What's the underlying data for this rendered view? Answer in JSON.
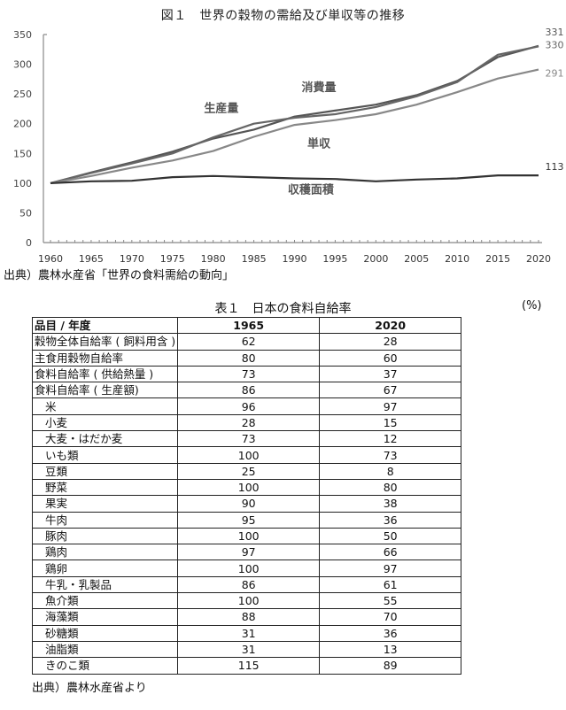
{
  "figure": {
    "title": "図１　世界の穀物の需給及び単収等の推移",
    "source": "出典）農林水産省「世界の食料需給の動向」"
  },
  "chart_data": {
    "type": "line",
    "title": "図１　世界の穀物の需給及び単収等の推移",
    "xlabel": "",
    "ylabel": "",
    "ylim": [
      0,
      350
    ],
    "xlim": [
      1960,
      2020
    ],
    "yticks": [
      0,
      50,
      100,
      150,
      200,
      250,
      300,
      350
    ],
    "xticks": [
      1960,
      1965,
      1970,
      1975,
      1980,
      1985,
      1990,
      1995,
      2000,
      2005,
      2010,
      2015,
      2020
    ],
    "grid": false,
    "legend": "inline labels",
    "x": [
      1960,
      1965,
      1970,
      1975,
      1980,
      1985,
      1990,
      1995,
      2000,
      2005,
      2010,
      2015,
      2020
    ],
    "series": [
      {
        "name": "消費量",
        "color": "#555555",
        "values": [
          100,
          118,
          135,
          153,
          175,
          190,
          212,
          222,
          232,
          248,
          272,
          312,
          331
        ],
        "end_label": "331"
      },
      {
        "name": "生産量",
        "color": "#666666",
        "values": [
          100,
          117,
          133,
          150,
          177,
          200,
          210,
          216,
          228,
          246,
          270,
          316,
          330
        ],
        "end_label": "330"
      },
      {
        "name": "単収",
        "color": "#888888",
        "values": [
          100,
          112,
          126,
          138,
          154,
          178,
          198,
          206,
          216,
          232,
          253,
          276,
          291
        ],
        "end_label": "291"
      },
      {
        "name": "収穫面積",
        "color": "#333333",
        "values": [
          100,
          103,
          104,
          110,
          112,
          110,
          108,
          107,
          103,
          106,
          108,
          113,
          113
        ],
        "end_label": "113"
      }
    ],
    "annotations": [
      {
        "text": "消費量",
        "x": 1993,
        "y": 255
      },
      {
        "text": "生産量",
        "x": 1981,
        "y": 220
      },
      {
        "text": "単収",
        "x": 1993,
        "y": 160
      },
      {
        "text": "収穫面積",
        "x": 1992,
        "y": 83
      }
    ]
  },
  "table": {
    "title": "表１　日本の食料自給率",
    "unit": "(%)",
    "headers": [
      "品目 / 年度",
      "1965",
      "2020"
    ],
    "rows": [
      {
        "item": "穀物全体自給率 ( 飼料用含 )",
        "indent": false,
        "v1965": "62",
        "v2020": "28"
      },
      {
        "item": "主食用穀物自給率",
        "indent": false,
        "v1965": "80",
        "v2020": "60"
      },
      {
        "item": "食料自給率 ( 供給熱量 )",
        "indent": false,
        "v1965": "73",
        "v2020": "37"
      },
      {
        "item": "食料自給率 ( 生産額)",
        "indent": false,
        "v1965": "86",
        "v2020": "67"
      },
      {
        "item": "米",
        "indent": true,
        "v1965": "96",
        "v2020": "97"
      },
      {
        "item": "小麦",
        "indent": true,
        "v1965": "28",
        "v2020": "15"
      },
      {
        "item": "大麦・はだか麦",
        "indent": true,
        "v1965": "73",
        "v2020": "12"
      },
      {
        "item": "いも類",
        "indent": true,
        "v1965": "100",
        "v2020": "73"
      },
      {
        "item": "豆類",
        "indent": true,
        "v1965": "25",
        "v2020": "8"
      },
      {
        "item": "野菜",
        "indent": true,
        "v1965": "100",
        "v2020": "80"
      },
      {
        "item": "果実",
        "indent": true,
        "v1965": "90",
        "v2020": "38"
      },
      {
        "item": "牛肉",
        "indent": true,
        "v1965": "95",
        "v2020": "36"
      },
      {
        "item": "豚肉",
        "indent": true,
        "v1965": "100",
        "v2020": "50"
      },
      {
        "item": "鶏肉",
        "indent": true,
        "v1965": "97",
        "v2020": "66"
      },
      {
        "item": "鶏卵",
        "indent": true,
        "v1965": "100",
        "v2020": "97"
      },
      {
        "item": "牛乳・乳製品",
        "indent": true,
        "v1965": "86",
        "v2020": "61"
      },
      {
        "item": "魚介類",
        "indent": true,
        "v1965": "100",
        "v2020": "55"
      },
      {
        "item": "海藻類",
        "indent": true,
        "v1965": "88",
        "v2020": "70"
      },
      {
        "item": "砂糖類",
        "indent": true,
        "v1965": "31",
        "v2020": "36"
      },
      {
        "item": "油脂類",
        "indent": true,
        "v1965": "31",
        "v2020": "13"
      },
      {
        "item": "きのこ類",
        "indent": true,
        "v1965": "115",
        "v2020": "89"
      }
    ],
    "source": "出典）農林水産省より"
  }
}
